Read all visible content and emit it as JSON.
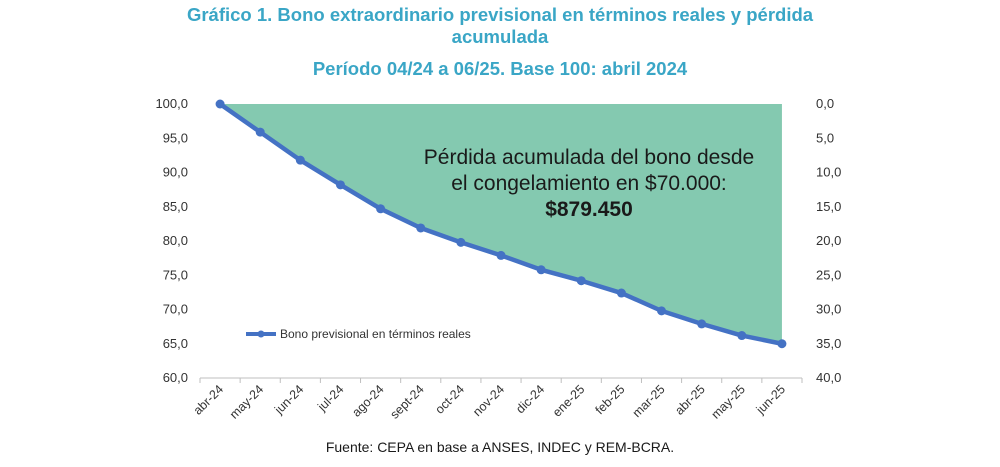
{
  "chart_data": {
    "type": "line",
    "title_line1": "Gráfico 1. Bono extraordinario previsional en términos reales y pérdida",
    "title_line2": "acumulada",
    "subtitle": "Período 04/24 a 06/25. Base 100: abril 2024",
    "categories": [
      "abr-24",
      "may-24",
      "jun-24",
      "jul-24",
      "ago-24",
      "sept-24",
      "oct-24",
      "nov-24",
      "dic-24",
      "ene-25",
      "feb-25",
      "mar-25",
      "abr-25",
      "may-25",
      "jun-25"
    ],
    "series": [
      {
        "name": "Bono previsional en términos reales",
        "values": [
          100.0,
          95.9,
          91.8,
          88.2,
          84.7,
          81.9,
          79.8,
          77.9,
          75.8,
          74.2,
          72.4,
          69.8,
          67.9,
          66.2,
          65.0
        ],
        "color": "#4472c4"
      }
    ],
    "area_color": "#84c9b0",
    "ylim_left": [
      60,
      100
    ],
    "yticks_left": [
      "60,0",
      "65,0",
      "70,0",
      "75,0",
      "80,0",
      "85,0",
      "90,0",
      "95,0",
      "100,0"
    ],
    "ylim_right": [
      0,
      40
    ],
    "yticks_right": [
      "0,0",
      "5,0",
      "10,0",
      "15,0",
      "20,0",
      "25,0",
      "30,0",
      "35,0",
      "40,0"
    ],
    "right_axis_inverted": true,
    "annotation": {
      "line1": "Pérdida acumulada del bono desde",
      "line2": "el congelamiento en $70.000:",
      "value": "$879.450"
    },
    "legend_position": "bottom-left",
    "grid": false
  },
  "source": "Fuente: CEPA en base a ANSES, INDEC y REM-BCRA."
}
